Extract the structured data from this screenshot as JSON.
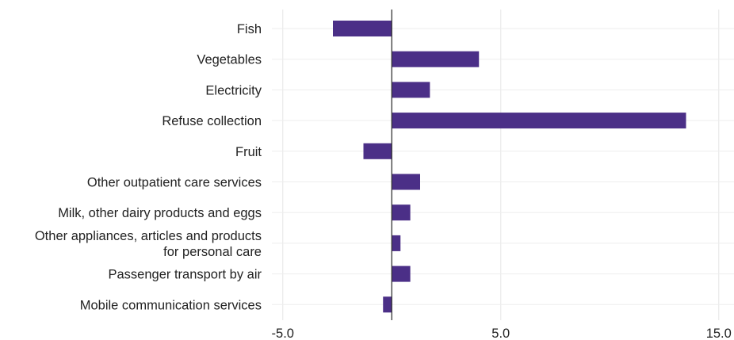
{
  "chart_data": {
    "type": "bar",
    "orientation": "horizontal",
    "categories": [
      "Fish",
      "Vegetables",
      "Electricity",
      "Refuse collection",
      "Fruit",
      "Other outpatient care services",
      "Milk, other dairy products and eggs",
      "Other appliances, articles and products for personal care",
      "Passenger transport by air",
      "Mobile communication services"
    ],
    "category_lines": [
      [
        "Fish"
      ],
      [
        "Vegetables"
      ],
      [
        "Electricity"
      ],
      [
        "Refuse collection"
      ],
      [
        "Fruit"
      ],
      [
        "Other outpatient care services"
      ],
      [
        "Milk, other dairy products and eggs"
      ],
      [
        "Other appliances, articles and products",
        "for personal care"
      ],
      [
        "Passenger transport by air"
      ],
      [
        "Mobile communication services"
      ]
    ],
    "values": [
      -2.7,
      4.0,
      1.75,
      13.5,
      -1.3,
      1.3,
      0.85,
      0.4,
      0.85,
      -0.4
    ],
    "xlim": [
      -5.5,
      15.7
    ],
    "xticks": [
      -5.0,
      5.0,
      15.0
    ],
    "xtick_labels": [
      "-5.0",
      "5.0",
      "15.0"
    ],
    "bar_color": "#4b2f87",
    "grid": true,
    "title": "",
    "xlabel": "",
    "ylabel": ""
  }
}
